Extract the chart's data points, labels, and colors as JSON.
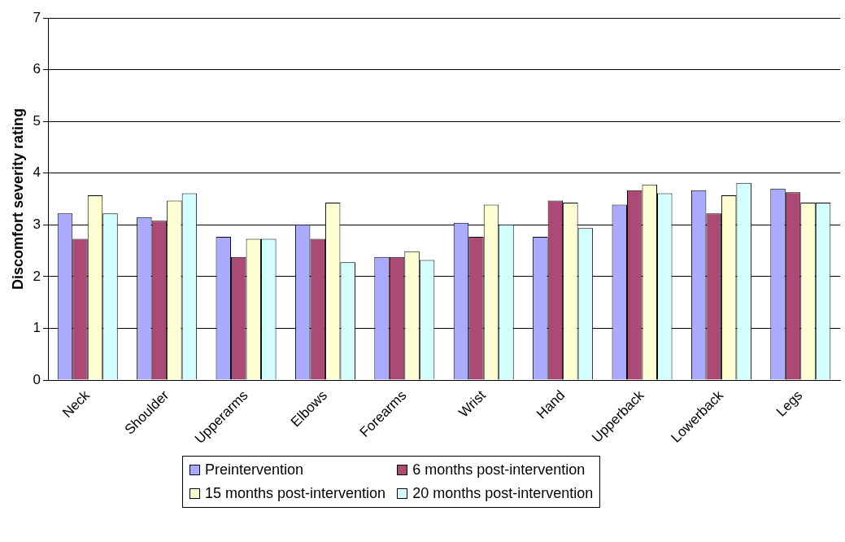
{
  "chart_data": {
    "type": "bar",
    "ylabel": "Discomfort severity rating",
    "categories": [
      "Neck",
      "Shoulder",
      "Upperarms",
      "Elbows",
      "Forearms",
      "Wrist",
      "Hand",
      "Upperback",
      "Lowerback",
      "Legs"
    ],
    "series": [
      {
        "name": "Preintervention",
        "color": "#aaaaff",
        "values": [
          3.22,
          3.15,
          2.77,
          3.01,
          2.38,
          3.04,
          2.77,
          3.39,
          3.67,
          3.7
        ]
      },
      {
        "name": "6 months post-intervention",
        "color": "#aa4a75",
        "values": [
          2.73,
          3.08,
          2.38,
          2.73,
          2.38,
          2.77,
          3.47,
          3.67,
          3.22,
          3.63
        ]
      },
      {
        "name": "15 months post-intervention",
        "color": "#ffffd4",
        "values": [
          3.57,
          3.47,
          2.73,
          3.43,
          2.49,
          3.39,
          3.43,
          3.78,
          3.57,
          3.43
        ]
      },
      {
        "name": "20 months post-intervention",
        "color": "#d4ffff",
        "values": [
          3.22,
          3.61,
          2.73,
          2.28,
          2.32,
          3.01,
          2.94,
          3.61,
          3.81,
          3.43
        ]
      }
    ],
    "ylim": [
      0,
      7
    ],
    "yticks": [
      0,
      1,
      2,
      3,
      4,
      5,
      6,
      7
    ],
    "grid": "y",
    "legend": "bottom"
  }
}
